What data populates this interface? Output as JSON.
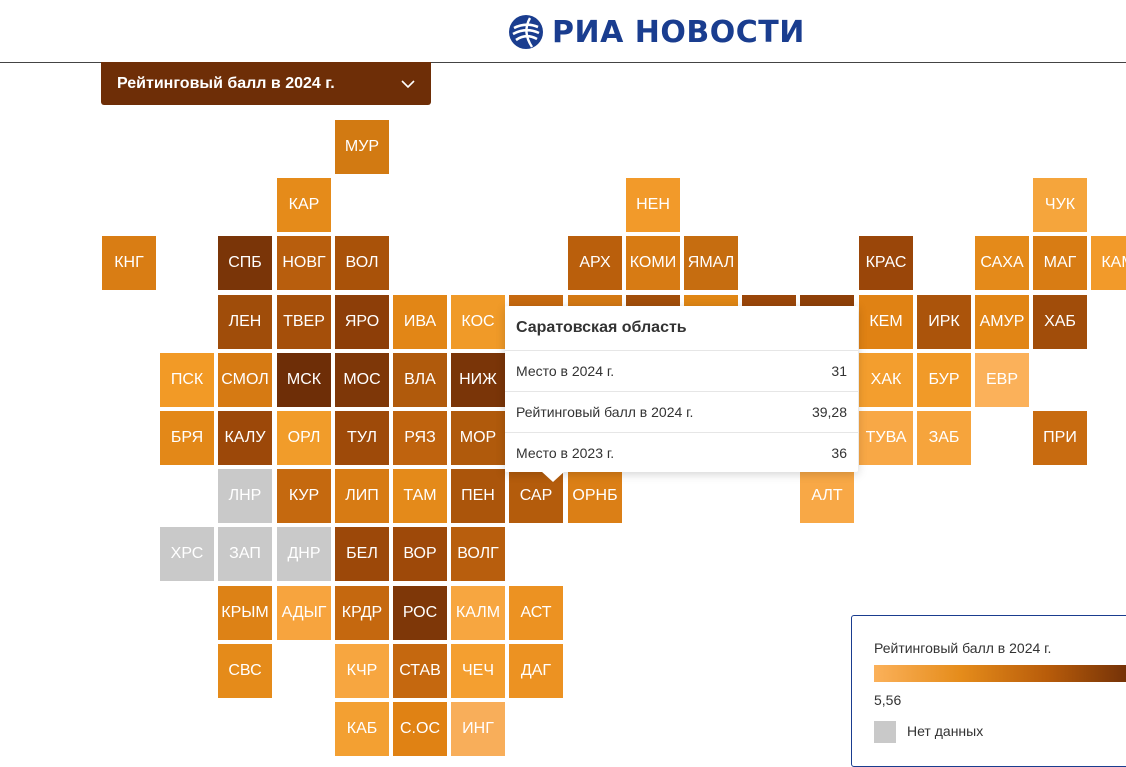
{
  "header": {
    "logo_text": "РИА НОВОСТИ"
  },
  "dropdown": {
    "label": "Рейтинговый балл в 2024 г."
  },
  "tooltip": {
    "title": "Саратовская область",
    "rows": [
      {
        "label": "Место в 2024 г.",
        "value": "31"
      },
      {
        "label": "Рейтинговый балл в 2024 г.",
        "value": "39,28"
      },
      {
        "label": "Место в 2023 г.",
        "value": "36"
      }
    ]
  },
  "legend": {
    "title": "Рейтинговый балл в 2024 г.",
    "min_label": "5,56",
    "no_data_label": "Нет данных",
    "gradient": [
      "#fbb15a",
      "#e58c1b",
      "#b85c0a",
      "#6e2e07"
    ],
    "no_data_color": "#c9c9c9"
  },
  "map": {
    "regions": [
      {
        "label": "МУР",
        "col": 4,
        "row": 0,
        "color": "#d27a12"
      },
      {
        "label": "КАР",
        "col": 3,
        "row": 1,
        "color": "#e58b1a"
      },
      {
        "label": "НЕН",
        "col": 9,
        "row": 1,
        "color": "#f29a2a"
      },
      {
        "label": "ЧУК",
        "col": 16,
        "row": 1,
        "color": "#f5a53c"
      },
      {
        "label": "КНГ",
        "col": 0,
        "row": 2,
        "color": "#d97d14"
      },
      {
        "label": "СПБ",
        "col": 2,
        "row": 2,
        "color": "#7a3508"
      },
      {
        "label": "НОВГ",
        "col": 3,
        "row": 2,
        "color": "#b85e0d"
      },
      {
        "label": "ВОЛ",
        "col": 4,
        "row": 2,
        "color": "#a95209"
      },
      {
        "label": "АРХ",
        "col": 8,
        "row": 2,
        "color": "#ba5f0c"
      },
      {
        "label": "КОМИ",
        "col": 9,
        "row": 2,
        "color": "#d77b14"
      },
      {
        "label": "ЯМАЛ",
        "col": 10,
        "row": 2,
        "color": "#c66d10"
      },
      {
        "label": "КРАС",
        "col": 13,
        "row": 2,
        "color": "#9a4609"
      },
      {
        "label": "САХА",
        "col": 15,
        "row": 2,
        "color": "#e48a1a"
      },
      {
        "label": "МАГ",
        "col": 16,
        "row": 2,
        "color": "#d87c14"
      },
      {
        "label": "КАМ",
        "col": 17,
        "row": 2,
        "color": "#f29a2a"
      },
      {
        "label": "ЛЕН",
        "col": 2,
        "row": 3,
        "color": "#a04d0a"
      },
      {
        "label": "ТВЕР",
        "col": 3,
        "row": 3,
        "color": "#a54f0a"
      },
      {
        "label": "ЯРО",
        "col": 4,
        "row": 3,
        "color": "#8d3e08"
      },
      {
        "label": "ИВА",
        "col": 5,
        "row": 3,
        "color": "#e28616"
      },
      {
        "label": "КОС",
        "col": 6,
        "row": 3,
        "color": "#f09a28"
      },
      {
        "label": "",
        "col": 7,
        "row": 3,
        "color": "#c6690f"
      },
      {
        "label": "",
        "col": 8,
        "row": 3,
        "color": "#d37813"
      },
      {
        "label": "",
        "col": 9,
        "row": 3,
        "color": "#a24e0a"
      },
      {
        "label": "",
        "col": 10,
        "row": 3,
        "color": "#e08614"
      },
      {
        "label": "",
        "col": 11,
        "row": 3,
        "color": "#9a4609"
      },
      {
        "label": "",
        "col": 12,
        "row": 3,
        "color": "#8f4008"
      },
      {
        "label": "КЕМ",
        "col": 13,
        "row": 3,
        "color": "#e08214"
      },
      {
        "label": "ИРК",
        "col": 14,
        "row": 3,
        "color": "#ab540b"
      },
      {
        "label": "АМУР",
        "col": 15,
        "row": 3,
        "color": "#e18515"
      },
      {
        "label": "ХАБ",
        "col": 16,
        "row": 3,
        "color": "#a14d0a"
      },
      {
        "label": "ПСК",
        "col": 1,
        "row": 4,
        "color": "#f29a26"
      },
      {
        "label": "СМОЛ",
        "col": 2,
        "row": 4,
        "color": "#d67a13"
      },
      {
        "label": "МСК",
        "col": 3,
        "row": 4,
        "color": "#6e2e07"
      },
      {
        "label": "МОС",
        "col": 4,
        "row": 4,
        "color": "#7e3708"
      },
      {
        "label": "ВЛА",
        "col": 5,
        "row": 4,
        "color": "#b05a0c"
      },
      {
        "label": "НИЖ",
        "col": 6,
        "row": 4,
        "color": "#7a3508"
      },
      {
        "label": "ХАК",
        "col": 13,
        "row": 4,
        "color": "#f39e2e"
      },
      {
        "label": "БУР",
        "col": 14,
        "row": 4,
        "color": "#f19a28"
      },
      {
        "label": "ЕВР",
        "col": 15,
        "row": 4,
        "color": "#fbb15a"
      },
      {
        "label": "БРЯ",
        "col": 1,
        "row": 5,
        "color": "#e38818"
      },
      {
        "label": "КАЛУ",
        "col": 2,
        "row": 5,
        "color": "#9c4809"
      },
      {
        "label": "ОРЛ",
        "col": 3,
        "row": 5,
        "color": "#f19c2a"
      },
      {
        "label": "ТУЛ",
        "col": 4,
        "row": 5,
        "color": "#9e4a09"
      },
      {
        "label": "РЯЗ",
        "col": 5,
        "row": 5,
        "color": "#bf630e"
      },
      {
        "label": "МОР",
        "col": 6,
        "row": 5,
        "color": "#b05a0c"
      },
      {
        "label": "ТУВА",
        "col": 13,
        "row": 5,
        "color": "#f8a846"
      },
      {
        "label": "ЗАБ",
        "col": 14,
        "row": 5,
        "color": "#f6a43c"
      },
      {
        "label": "ПРИ",
        "col": 16,
        "row": 5,
        "color": "#c86b10"
      },
      {
        "label": "ЛНР",
        "col": 2,
        "row": 6,
        "color": "#c9c9c9"
      },
      {
        "label": "КУР",
        "col": 3,
        "row": 6,
        "color": "#c5690f"
      },
      {
        "label": "ЛИП",
        "col": 4,
        "row": 6,
        "color": "#d77b14"
      },
      {
        "label": "ТАМ",
        "col": 5,
        "row": 6,
        "color": "#e48a1a"
      },
      {
        "label": "ПЕН",
        "col": 6,
        "row": 6,
        "color": "#ab550b"
      },
      {
        "label": "САР",
        "col": 7,
        "row": 6,
        "color": "#b45c0c"
      },
      {
        "label": "ОРНБ",
        "col": 8,
        "row": 6,
        "color": "#db7f16"
      },
      {
        "label": "АЛТ",
        "col": 12,
        "row": 6,
        "color": "#f8a846"
      },
      {
        "label": "ХРС",
        "col": 1,
        "row": 7,
        "color": "#c9c9c9"
      },
      {
        "label": "ЗАП",
        "col": 2,
        "row": 7,
        "color": "#c9c9c9"
      },
      {
        "label": "ДНР",
        "col": 3,
        "row": 7,
        "color": "#c9c9c9"
      },
      {
        "label": "БЕЛ",
        "col": 4,
        "row": 7,
        "color": "#9c4809"
      },
      {
        "label": "ВОР",
        "col": 5,
        "row": 7,
        "color": "#9e4909"
      },
      {
        "label": "ВОЛГ",
        "col": 6,
        "row": 7,
        "color": "#b85e0d"
      },
      {
        "label": "КРЫМ",
        "col": 2,
        "row": 8,
        "color": "#dd8216"
      },
      {
        "label": "АДЫГ",
        "col": 3,
        "row": 8,
        "color": "#f7a43e"
      },
      {
        "label": "КРДР",
        "col": 4,
        "row": 8,
        "color": "#c5680f"
      },
      {
        "label": "РОС",
        "col": 5,
        "row": 8,
        "color": "#7e3708"
      },
      {
        "label": "КАЛМ",
        "col": 6,
        "row": 8,
        "color": "#f7a640"
      },
      {
        "label": "АСТ",
        "col": 7,
        "row": 8,
        "color": "#ec9222"
      },
      {
        "label": "СВС",
        "col": 2,
        "row": 9,
        "color": "#e58b1a"
      },
      {
        "label": "КЧР",
        "col": 4,
        "row": 9,
        "color": "#f7a640"
      },
      {
        "label": "СТАВ",
        "col": 5,
        "row": 9,
        "color": "#c5680f"
      },
      {
        "label": "ЧЕЧ",
        "col": 6,
        "row": 9,
        "color": "#f49f30"
      },
      {
        "label": "ДАГ",
        "col": 7,
        "row": 9,
        "color": "#ec9222"
      },
      {
        "label": "КАБ",
        "col": 4,
        "row": 10,
        "color": "#f3a032"
      },
      {
        "label": "С.ОС",
        "col": 5,
        "row": 10,
        "color": "#e08214"
      },
      {
        "label": "ИНГ",
        "col": 6,
        "row": 10,
        "color": "#f8ae5a"
      }
    ]
  }
}
